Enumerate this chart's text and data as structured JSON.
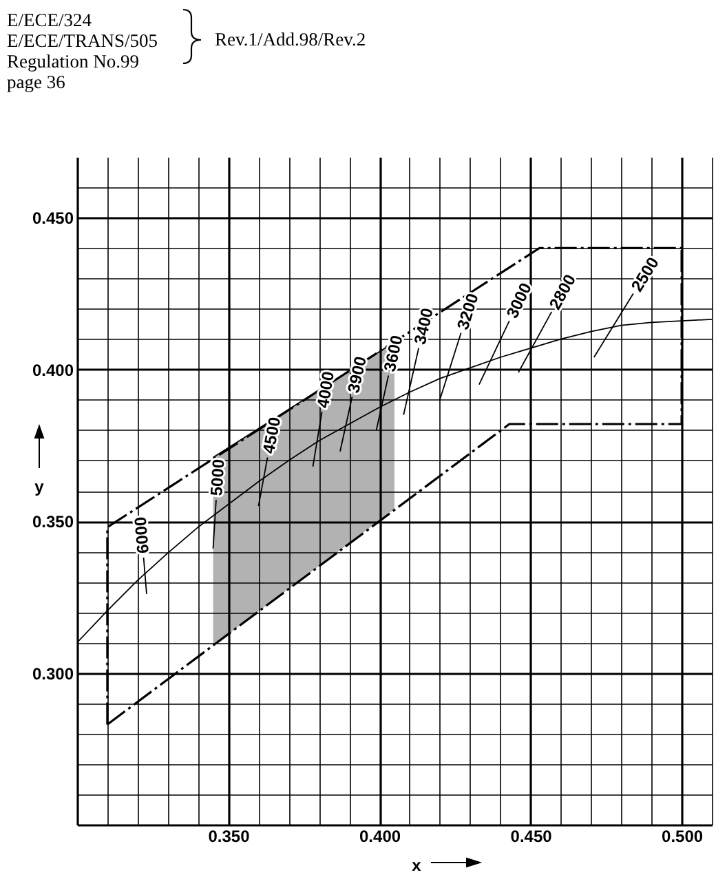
{
  "chart_data": {
    "type": "line",
    "xlabel": "x",
    "ylabel": "y",
    "annotations": [
      "E/ECE/324",
      "E/ECE/TRANS/505",
      "Regulation No.99",
      "page 36",
      "Rev.1/Add.98/Rev.2"
    ],
    "xlim": [
      0.3,
      0.51
    ],
    "ylim": [
      0.25,
      0.47
    ],
    "xticks": [
      {
        "value": 0.31,
        "label": null
      },
      {
        "value": 0.32,
        "label": null
      },
      {
        "value": 0.33,
        "label": null
      },
      {
        "value": 0.34,
        "label": null
      },
      {
        "value": 0.35,
        "label": "0.350"
      },
      {
        "value": 0.36,
        "label": null
      },
      {
        "value": 0.37,
        "label": null
      },
      {
        "value": 0.38,
        "label": null
      },
      {
        "value": 0.39,
        "label": null
      },
      {
        "value": 0.4,
        "label": "0.400"
      },
      {
        "value": 0.41,
        "label": null
      },
      {
        "value": 0.42,
        "label": null
      },
      {
        "value": 0.43,
        "label": null
      },
      {
        "value": 0.44,
        "label": null
      },
      {
        "value": 0.45,
        "label": "0.450"
      },
      {
        "value": 0.46,
        "label": null
      },
      {
        "value": 0.47,
        "label": null
      },
      {
        "value": 0.48,
        "label": null
      },
      {
        "value": 0.49,
        "label": null
      },
      {
        "value": 0.5,
        "label": "0.500"
      },
      {
        "value": 0.51,
        "label": null
      }
    ],
    "yticks": [
      {
        "value": 0.26,
        "label": null
      },
      {
        "value": 0.27,
        "label": null
      },
      {
        "value": 0.28,
        "label": null
      },
      {
        "value": 0.29,
        "label": null
      },
      {
        "value": 0.3,
        "label": "0.300"
      },
      {
        "value": 0.31,
        "label": null
      },
      {
        "value": 0.32,
        "label": null
      },
      {
        "value": 0.33,
        "label": null
      },
      {
        "value": 0.34,
        "label": null
      },
      {
        "value": 0.35,
        "label": "0.350"
      },
      {
        "value": 0.36,
        "label": null
      },
      {
        "value": 0.37,
        "label": null
      },
      {
        "value": 0.38,
        "label": null
      },
      {
        "value": 0.39,
        "label": null
      },
      {
        "value": 0.4,
        "label": "0.400"
      },
      {
        "value": 0.41,
        "label": null
      },
      {
        "value": 0.42,
        "label": null
      },
      {
        "value": 0.43,
        "label": null
      },
      {
        "value": 0.44,
        "label": null
      },
      {
        "value": 0.45,
        "label": "0.450"
      },
      {
        "value": 0.46,
        "label": null
      }
    ],
    "grid": true,
    "series": [
      {
        "color": "#000000",
        "x": [
          0.345,
          0.405
        ],
        "values": [
          0.371,
          0.409
        ],
        "lower": [
          0.309,
          0.354
        ],
        "upper": [
          0.371,
          0.409
        ]
      },
      {
        "color": "#000000",
        "line_style": "dashed",
        "x": [
          0.31,
          0.31,
          0.453,
          0.5
        ],
        "values": [
          0.283,
          0.348,
          0.44,
          0.44
        ]
      },
      {
        "color": "#000000",
        "line_style": "dashed",
        "x": [
          0.31,
          0.443,
          0.5,
          0.5
        ],
        "values": [
          0.283,
          0.382,
          0.382,
          0.44
        ]
      },
      {
        "color": "#000000",
        "x": [
          0.3,
          0.31,
          0.32,
          0.33,
          0.34,
          0.35,
          0.36,
          0.37,
          0.38,
          0.39,
          0.4,
          0.41,
          0.42,
          0.43,
          0.44,
          0.45,
          0.46,
          0.47,
          0.48,
          0.49,
          0.5,
          0.51
        ],
        "values": [
          0.31,
          0.3205,
          0.3305,
          0.3395,
          0.348,
          0.3555,
          0.363,
          0.37,
          0.3765,
          0.382,
          0.3875,
          0.3925,
          0.397,
          0.4005,
          0.404,
          0.407,
          0.41,
          0.4125,
          0.4145,
          0.4155,
          0.416,
          0.4165
        ]
      },
      {
        "name": "6000",
        "color": "#000000",
        "x": [
          0.323,
          0.322
        ],
        "values": [
          0.326,
          0.338
        ]
      },
      {
        "name": "5000",
        "color": "#000000",
        "x": [
          0.345,
          0.346
        ],
        "values": [
          0.341,
          0.357
        ]
      },
      {
        "name": "4500",
        "color": "#000000",
        "x": [
          0.36,
          0.363
        ],
        "values": [
          0.355,
          0.371
        ]
      },
      {
        "name": "4000",
        "color": "#000000",
        "x": [
          0.378,
          0.381
        ],
        "values": [
          0.368,
          0.386
        ]
      },
      {
        "name": "3900",
        "color": "#000000",
        "x": [
          0.387,
          0.391
        ],
        "values": [
          0.373,
          0.391
        ]
      },
      {
        "name": "3600",
        "color": "#000000",
        "x": [
          0.399,
          0.403
        ],
        "values": [
          0.38,
          0.398
        ]
      },
      {
        "name": "3400",
        "color": "#000000",
        "x": [
          0.408,
          0.413
        ],
        "values": [
          0.385,
          0.407
        ]
      },
      {
        "name": "3200",
        "color": "#000000",
        "x": [
          0.42,
          0.427
        ],
        "values": [
          0.39,
          0.412
        ]
      },
      {
        "name": "3000",
        "color": "#000000",
        "x": [
          0.433,
          0.443
        ],
        "values": [
          0.395,
          0.416
        ]
      },
      {
        "name": "2800",
        "color": "#000000",
        "x": [
          0.446,
          0.457
        ],
        "values": [
          0.399,
          0.419
        ]
      },
      {
        "name": "2500",
        "color": "#000000",
        "x": [
          0.471,
          0.484
        ],
        "values": [
          0.404,
          0.425
        ]
      }
    ]
  }
}
